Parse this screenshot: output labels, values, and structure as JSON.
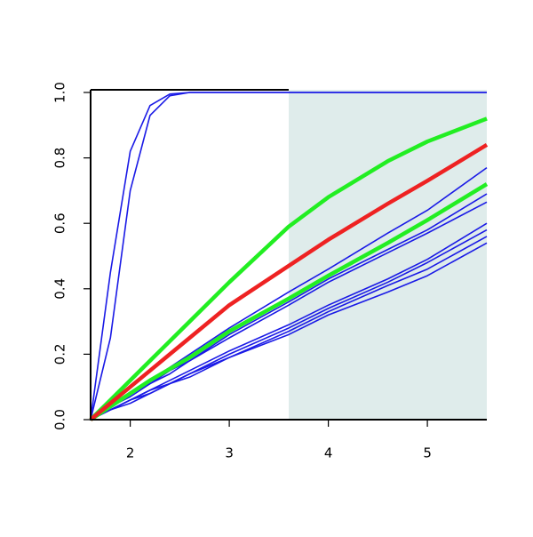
{
  "chart_data": {
    "type": "line",
    "x": [
      1.6,
      1.8,
      2.0,
      2.2,
      2.4,
      2.6,
      3.0,
      3.6,
      4.0,
      4.6,
      5.0,
      5.6
    ],
    "xlim": [
      1.6,
      5.6
    ],
    "xticks": [
      2,
      3,
      4,
      5
    ],
    "ylim": [
      0,
      1
    ],
    "yticks": [
      {
        "value": 0,
        "label": "0.0"
      },
      0.2,
      0.4,
      0.6,
      0.8,
      {
        "value": 1,
        "label": "1.0"
      }
    ],
    "shaded_region": {
      "xlim": [
        3.6,
        5.6
      ],
      "color": "#dfeceb"
    },
    "series": [
      {
        "color": "#1a1ae6",
        "line_width": 1.6,
        "values": [
          0,
          0.45,
          0.82,
          0.96,
          0.995,
          1,
          1,
          1,
          1,
          1,
          1,
          1
        ]
      },
      {
        "color": "#1a1ae6",
        "line_width": 1.6,
        "values": [
          0,
          0.25,
          0.7,
          0.93,
          0.99,
          1,
          1,
          1,
          1,
          1,
          1,
          1
        ]
      },
      {
        "color": "#1a1ae6",
        "line_width": 1.6,
        "values": [
          0,
          0.04,
          0.08,
          0.12,
          0.16,
          0.2,
          0.28,
          0.39,
          0.46,
          0.57,
          0.64,
          0.77
        ]
      },
      {
        "color": "#1a1ae6",
        "line_width": 1.6,
        "values": [
          0,
          0.04,
          0.08,
          0.11,
          0.15,
          0.18,
          0.26,
          0.36,
          0.43,
          0.52,
          0.58,
          0.69
        ]
      },
      {
        "color": "#1a1ae6",
        "line_width": 1.6,
        "values": [
          0,
          0.04,
          0.07,
          0.11,
          0.14,
          0.18,
          0.25,
          0.35,
          0.42,
          0.51,
          0.57,
          0.665
        ]
      },
      {
        "color": "#1a1ae6",
        "line_width": 1.6,
        "values": [
          0,
          0.03,
          0.06,
          0.09,
          0.12,
          0.15,
          0.21,
          0.29,
          0.35,
          0.43,
          0.49,
          0.6
        ]
      },
      {
        "color": "#1a1ae6",
        "line_width": 1.6,
        "values": [
          0,
          0.03,
          0.06,
          0.09,
          0.11,
          0.14,
          0.2,
          0.28,
          0.34,
          0.42,
          0.48,
          0.58
        ]
      },
      {
        "color": "#1a1ae6",
        "line_width": 1.6,
        "values": [
          0,
          0.03,
          0.06,
          0.08,
          0.11,
          0.14,
          0.19,
          0.27,
          0.33,
          0.41,
          0.46,
          0.56
        ]
      },
      {
        "color": "#1a1ae6",
        "line_width": 1.6,
        "values": [
          0,
          0.03,
          0.05,
          0.08,
          0.11,
          0.13,
          0.19,
          0.26,
          0.32,
          0.39,
          0.44,
          0.54
        ]
      },
      {
        "color": "#22ee22",
        "line_width": 4.5,
        "values": [
          0,
          0.04,
          0.08,
          0.12,
          0.155,
          0.19,
          0.27,
          0.37,
          0.44,
          0.54,
          0.61,
          0.72
        ]
      },
      {
        "color": "#22ee22",
        "line_width": 4.5,
        "values": [
          0,
          0.06,
          0.12,
          0.18,
          0.24,
          0.3,
          0.42,
          0.59,
          0.68,
          0.79,
          0.85,
          0.92
        ]
      },
      {
        "color": "#ee2222",
        "line_width": 4.5,
        "values": [
          0,
          0.05,
          0.1,
          0.15,
          0.2,
          0.25,
          0.35,
          0.47,
          0.55,
          0.66,
          0.73,
          0.84
        ]
      }
    ]
  }
}
